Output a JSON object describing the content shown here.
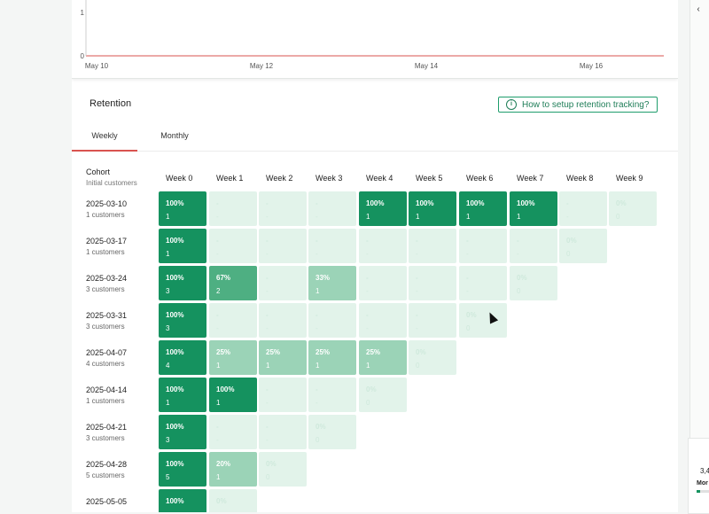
{
  "chart": {
    "y_ticks": [
      "1",
      "0"
    ],
    "x_ticks": [
      "May 10",
      "May 12",
      "May 14",
      "May 16"
    ],
    "baseline_color": "#d9534f"
  },
  "retention": {
    "title": "Retention",
    "help_button": "How to setup retention tracking?",
    "tabs": [
      "Weekly",
      "Monthly"
    ],
    "active_tab": "Weekly",
    "cohort_header": "Cohort",
    "cohort_subheader": "Initial customers",
    "weeks": [
      "Week 0",
      "Week 1",
      "Week 2",
      "Week 3",
      "Week 4",
      "Week 5",
      "Week 6",
      "Week 7",
      "Week 8",
      "Week 9"
    ],
    "rows": [
      {
        "date": "2025-03-10",
        "customers": "1 customers",
        "cells": [
          {
            "pct": "100%",
            "n": "1",
            "level": "full"
          },
          {
            "pct": "-",
            "n": "-",
            "level": "pale"
          },
          {
            "pct": "-",
            "n": "-",
            "level": "pale"
          },
          {
            "pct": "-",
            "n": "-",
            "level": "pale"
          },
          {
            "pct": "100%",
            "n": "1",
            "level": "full"
          },
          {
            "pct": "100%",
            "n": "1",
            "level": "full"
          },
          {
            "pct": "100%",
            "n": "1",
            "level": "full"
          },
          {
            "pct": "100%",
            "n": "1",
            "level": "full"
          },
          {
            "pct": "-",
            "n": "-",
            "level": "pale"
          },
          {
            "pct": "0%",
            "n": "0",
            "level": "pale"
          }
        ]
      },
      {
        "date": "2025-03-17",
        "customers": "1 customers",
        "cells": [
          {
            "pct": "100%",
            "n": "1",
            "level": "full"
          },
          {
            "pct": "-",
            "n": "-",
            "level": "pale"
          },
          {
            "pct": "-",
            "n": "-",
            "level": "pale"
          },
          {
            "pct": "-",
            "n": "-",
            "level": "pale"
          },
          {
            "pct": "-",
            "n": "-",
            "level": "pale"
          },
          {
            "pct": "-",
            "n": "-",
            "level": "pale"
          },
          {
            "pct": "-",
            "n": "-",
            "level": "pale"
          },
          {
            "pct": "-",
            "n": "-",
            "level": "pale"
          },
          {
            "pct": "0%",
            "n": "0",
            "level": "pale"
          }
        ]
      },
      {
        "date": "2025-03-24",
        "customers": "3 customers",
        "cells": [
          {
            "pct": "100%",
            "n": "3",
            "level": "full"
          },
          {
            "pct": "67%",
            "n": "2",
            "level": "mid"
          },
          {
            "pct": "-",
            "n": "-",
            "level": "pale"
          },
          {
            "pct": "33%",
            "n": "1",
            "level": "low"
          },
          {
            "pct": "-",
            "n": "-",
            "level": "pale"
          },
          {
            "pct": "-",
            "n": "-",
            "level": "pale"
          },
          {
            "pct": "-",
            "n": "-",
            "level": "pale"
          },
          {
            "pct": "0%",
            "n": "0",
            "level": "pale"
          }
        ]
      },
      {
        "date": "2025-03-31",
        "customers": "3 customers",
        "cells": [
          {
            "pct": "100%",
            "n": "3",
            "level": "full"
          },
          {
            "pct": "-",
            "n": "-",
            "level": "pale"
          },
          {
            "pct": "-",
            "n": "-",
            "level": "pale"
          },
          {
            "pct": "-",
            "n": "-",
            "level": "pale"
          },
          {
            "pct": "-",
            "n": "-",
            "level": "pale"
          },
          {
            "pct": "-",
            "n": "-",
            "level": "pale"
          },
          {
            "pct": "0%",
            "n": "0",
            "level": "pale"
          }
        ]
      },
      {
        "date": "2025-04-07",
        "customers": "4 customers",
        "cells": [
          {
            "pct": "100%",
            "n": "4",
            "level": "full"
          },
          {
            "pct": "25%",
            "n": "1",
            "level": "low"
          },
          {
            "pct": "25%",
            "n": "1",
            "level": "low"
          },
          {
            "pct": "25%",
            "n": "1",
            "level": "low"
          },
          {
            "pct": "25%",
            "n": "1",
            "level": "low"
          },
          {
            "pct": "0%",
            "n": "0",
            "level": "pale"
          }
        ]
      },
      {
        "date": "2025-04-14",
        "customers": "1 customers",
        "cells": [
          {
            "pct": "100%",
            "n": "1",
            "level": "full"
          },
          {
            "pct": "100%",
            "n": "1",
            "level": "full"
          },
          {
            "pct": "-",
            "n": "-",
            "level": "pale"
          },
          {
            "pct": "-",
            "n": "-",
            "level": "pale"
          },
          {
            "pct": "0%",
            "n": "0",
            "level": "pale"
          }
        ]
      },
      {
        "date": "2025-04-21",
        "customers": "3 customers",
        "cells": [
          {
            "pct": "100%",
            "n": "3",
            "level": "full"
          },
          {
            "pct": "-",
            "n": "-",
            "level": "pale"
          },
          {
            "pct": "-",
            "n": "-",
            "level": "pale"
          },
          {
            "pct": "0%",
            "n": "0",
            "level": "pale"
          }
        ]
      },
      {
        "date": "2025-04-28",
        "customers": "5 customers",
        "cells": [
          {
            "pct": "100%",
            "n": "5",
            "level": "full"
          },
          {
            "pct": "20%",
            "n": "1",
            "level": "low"
          },
          {
            "pct": "0%",
            "n": "0",
            "level": "pale"
          }
        ]
      },
      {
        "date": "2025-05-05",
        "customers": "",
        "cells": [
          {
            "pct": "100%",
            "n": "",
            "level": "full"
          },
          {
            "pct": "0%",
            "n": "",
            "level": "pale"
          }
        ]
      }
    ]
  },
  "right_panel": {
    "value": "3,4",
    "label": "Mor",
    "progress_fraction": 0.3
  },
  "colors": {
    "accent": "#15925f",
    "tab_underline": "#d9534f"
  }
}
